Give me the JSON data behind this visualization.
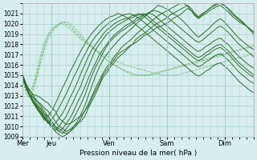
{
  "background_color": "#d8eeee",
  "grid_color": "#aacccc",
  "line_color_dark": "#2d6e2d",
  "line_color_dashed": "#5aaa5a",
  "xlabel": "Pression niveau de la mer( hPa )",
  "ylabel": "",
  "ylim": [
    1009,
    1022
  ],
  "yticks": [
    1009,
    1010,
    1011,
    1012,
    1013,
    1014,
    1015,
    1016,
    1017,
    1018,
    1019,
    1020,
    1021
  ],
  "day_labels": [
    "Mer",
    "Jeu",
    "Ven",
    "Sam",
    "Dim"
  ],
  "day_positions": [
    0,
    24,
    72,
    120,
    168
  ],
  "xlim": [
    0,
    192
  ],
  "series": [
    [
      1015.0,
      1014.2,
      1013.5,
      1013.1,
      1013.0,
      1012.8,
      1012.5,
      1012.3,
      1011.8,
      1011.5,
      1010.8,
      1010.5,
      1010.2,
      1010.3,
      1010.5,
      1010.8,
      1011.0,
      1011.5,
      1012.0,
      1012.8,
      1013.5,
      1014.2,
      1015.0,
      1015.5,
      1016.0,
      1016.5,
      1017.0,
      1017.3,
      1017.5,
      1017.8,
      1018.0,
      1018.2,
      1018.5,
      1018.8,
      1019.0,
      1019.2,
      1019.5,
      1019.7,
      1019.8,
      1020.0,
      1020.2,
      1020.5,
      1020.7,
      1020.9,
      1021.2,
      1021.5,
      1021.3,
      1020.8,
      1020.5,
      1020.8,
      1021.0,
      1021.3,
      1021.5,
      1021.7,
      1021.8,
      1021.5,
      1021.2,
      1020.8,
      1020.5,
      1020.2,
      1020.0,
      1019.8,
      1019.5,
      1019.2
    ],
    [
      1015.0,
      1014.0,
      1013.2,
      1012.8,
      1012.5,
      1012.2,
      1011.8,
      1011.5,
      1011.0,
      1010.5,
      1010.0,
      1009.8,
      1009.5,
      1009.7,
      1010.0,
      1010.3,
      1010.5,
      1011.0,
      1011.8,
      1012.5,
      1013.2,
      1014.0,
      1014.8,
      1015.2,
      1015.8,
      1016.2,
      1016.7,
      1017.0,
      1017.3,
      1017.7,
      1018.0,
      1018.5,
      1018.8,
      1019.0,
      1019.3,
      1019.6,
      1019.9,
      1020.1,
      1020.3,
      1020.5,
      1020.8,
      1021.0,
      1021.2,
      1021.4,
      1021.6,
      1021.8,
      1021.5,
      1021.0,
      1020.7,
      1021.0,
      1021.2,
      1021.5,
      1021.8,
      1022.0,
      1022.0,
      1021.8,
      1021.5,
      1021.0,
      1020.7,
      1020.4,
      1020.1,
      1019.8,
      1019.5,
      1019.2
    ],
    [
      1015.0,
      1014.0,
      1013.0,
      1012.5,
      1012.0,
      1011.8,
      1011.2,
      1011.0,
      1010.5,
      1010.0,
      1009.8,
      1009.5,
      1009.3,
      1009.5,
      1009.8,
      1010.2,
      1010.8,
      1011.5,
      1012.2,
      1013.0,
      1013.8,
      1014.5,
      1015.2,
      1015.8,
      1016.2,
      1016.8,
      1017.2,
      1017.7,
      1018.0,
      1018.3,
      1018.6,
      1019.0,
      1019.3,
      1019.6,
      1019.9,
      1020.2,
      1020.5,
      1020.8,
      1021.0,
      1021.2,
      1021.4,
      1021.6,
      1021.8,
      1022.0,
      1022.0,
      1021.7,
      1021.3,
      1020.9,
      1020.6,
      1020.9,
      1021.2,
      1021.5,
      1021.7,
      1021.9,
      1022.0,
      1021.8,
      1021.5,
      1021.2,
      1020.8,
      1020.5,
      1020.2,
      1019.8,
      1019.4,
      1019.0
    ],
    [
      1015.0,
      1013.8,
      1013.0,
      1012.3,
      1011.8,
      1011.3,
      1010.8,
      1010.5,
      1010.0,
      1009.5,
      1009.2,
      1009.0,
      1009.2,
      1009.5,
      1010.0,
      1010.5,
      1011.2,
      1012.0,
      1013.0,
      1014.0,
      1015.0,
      1015.8,
      1016.5,
      1017.0,
      1017.5,
      1017.9,
      1018.3,
      1018.7,
      1019.0,
      1019.3,
      1019.6,
      1020.0,
      1020.3,
      1020.6,
      1020.9,
      1021.2,
      1021.5,
      1021.8,
      1021.7,
      1021.5,
      1021.3,
      1021.0,
      1020.8,
      1020.5,
      1020.2,
      1019.8,
      1019.4,
      1019.0,
      1018.7,
      1019.0,
      1019.3,
      1019.6,
      1020.0,
      1020.3,
      1020.5,
      1020.2,
      1019.8,
      1019.4,
      1019.0,
      1018.6,
      1018.3,
      1018.0,
      1017.7,
      1017.5
    ],
    [
      1015.2,
      1014.2,
      1013.5,
      1013.0,
      1012.5,
      1012.0,
      1011.5,
      1011.0,
      1010.5,
      1010.0,
      1009.5,
      1009.3,
      1009.8,
      1010.2,
      1010.8,
      1011.5,
      1012.2,
      1013.0,
      1014.0,
      1015.0,
      1015.8,
      1016.5,
      1017.2,
      1017.8,
      1018.3,
      1018.7,
      1019.0,
      1019.3,
      1019.5,
      1019.8,
      1020.0,
      1020.3,
      1020.5,
      1020.8,
      1021.0,
      1021.2,
      1021.3,
      1021.2,
      1021.0,
      1020.8,
      1020.5,
      1020.2,
      1019.9,
      1019.6,
      1019.3,
      1019.0,
      1018.7,
      1018.4,
      1018.2,
      1018.4,
      1018.7,
      1019.0,
      1019.3,
      1019.6,
      1019.8,
      1019.5,
      1019.2,
      1018.8,
      1018.4,
      1018.0,
      1017.7,
      1017.4,
      1017.1,
      1016.8
    ],
    [
      1015.0,
      1014.0,
      1013.2,
      1012.8,
      1012.2,
      1011.7,
      1011.2,
      1010.7,
      1010.2,
      1009.8,
      1009.5,
      1009.8,
      1010.3,
      1010.8,
      1011.5,
      1012.3,
      1013.0,
      1013.8,
      1014.7,
      1015.5,
      1016.2,
      1017.0,
      1017.5,
      1018.0,
      1018.5,
      1018.9,
      1019.2,
      1019.5,
      1019.8,
      1020.0,
      1020.2,
      1020.5,
      1020.7,
      1020.9,
      1021.0,
      1021.0,
      1020.8,
      1020.5,
      1020.2,
      1019.9,
      1019.6,
      1019.3,
      1019.0,
      1018.7,
      1018.4,
      1018.1,
      1017.8,
      1017.5,
      1017.3,
      1017.5,
      1017.8,
      1018.0,
      1018.3,
      1018.5,
      1018.6,
      1018.3,
      1018.0,
      1017.6,
      1017.2,
      1016.8,
      1016.5,
      1016.2,
      1015.9,
      1015.7
    ],
    [
      1015.0,
      1013.8,
      1013.0,
      1012.4,
      1011.9,
      1011.4,
      1010.9,
      1010.4,
      1009.9,
      1009.6,
      1010.0,
      1010.5,
      1011.0,
      1011.8,
      1012.5,
      1013.3,
      1014.0,
      1015.0,
      1015.8,
      1016.7,
      1017.5,
      1018.0,
      1018.5,
      1019.0,
      1019.3,
      1019.6,
      1019.9,
      1020.1,
      1020.3,
      1020.5,
      1020.6,
      1020.8,
      1020.9,
      1021.0,
      1020.8,
      1020.5,
      1020.2,
      1019.9,
      1019.6,
      1019.3,
      1019.0,
      1018.7,
      1018.4,
      1018.1,
      1017.8,
      1017.5,
      1017.2,
      1016.9,
      1016.7,
      1016.9,
      1017.2,
      1017.4,
      1017.7,
      1017.9,
      1018.0,
      1017.7,
      1017.4,
      1017.0,
      1016.6,
      1016.2,
      1015.9,
      1015.6,
      1015.3,
      1015.0
    ],
    [
      1015.0,
      1014.0,
      1013.2,
      1012.5,
      1012.0,
      1011.5,
      1011.0,
      1010.5,
      1010.0,
      1010.3,
      1010.8,
      1011.3,
      1012.0,
      1012.8,
      1013.5,
      1014.3,
      1015.2,
      1016.0,
      1016.8,
      1017.5,
      1018.0,
      1018.5,
      1019.0,
      1019.4,
      1019.7,
      1020.0,
      1020.2,
      1020.4,
      1020.5,
      1020.6,
      1020.8,
      1020.9,
      1021.0,
      1020.8,
      1020.5,
      1020.2,
      1019.9,
      1019.6,
      1019.3,
      1019.0,
      1018.7,
      1018.4,
      1018.1,
      1017.8,
      1017.5,
      1017.2,
      1016.9,
      1016.6,
      1016.4,
      1016.6,
      1016.9,
      1017.1,
      1017.4,
      1017.6,
      1017.7,
      1017.4,
      1017.1,
      1016.7,
      1016.3,
      1015.9,
      1015.6,
      1015.3,
      1015.0,
      1014.8
    ],
    [
      1015.0,
      1013.9,
      1013.0,
      1012.4,
      1011.8,
      1011.3,
      1010.8,
      1010.3,
      1010.7,
      1011.2,
      1011.8,
      1012.5,
      1013.2,
      1014.0,
      1014.8,
      1015.5,
      1016.3,
      1017.0,
      1017.7,
      1018.3,
      1018.8,
      1019.2,
      1019.6,
      1019.9,
      1020.2,
      1020.4,
      1020.6,
      1020.8,
      1020.9,
      1021.0,
      1020.9,
      1020.7,
      1020.5,
      1020.2,
      1019.9,
      1019.6,
      1019.3,
      1019.0,
      1018.7,
      1018.4,
      1018.1,
      1017.8,
      1017.5,
      1017.2,
      1016.9,
      1016.6,
      1016.3,
      1016.0,
      1015.8,
      1016.0,
      1016.3,
      1016.5,
      1016.8,
      1017.0,
      1017.1,
      1016.8,
      1016.5,
      1016.1,
      1015.7,
      1015.3,
      1015.0,
      1014.7,
      1014.4,
      1014.2
    ],
    [
      1015.0,
      1013.8,
      1013.0,
      1012.3,
      1011.7,
      1011.2,
      1010.6,
      1011.0,
      1011.5,
      1012.2,
      1013.0,
      1013.8,
      1014.5,
      1015.3,
      1016.0,
      1016.7,
      1017.4,
      1018.0,
      1018.6,
      1019.1,
      1019.5,
      1019.9,
      1020.2,
      1020.5,
      1020.7,
      1020.8,
      1021.0,
      1020.9,
      1020.7,
      1020.5,
      1020.2,
      1019.9,
      1019.6,
      1019.3,
      1019.0,
      1018.7,
      1018.4,
      1018.1,
      1017.8,
      1017.5,
      1017.2,
      1016.9,
      1016.6,
      1016.3,
      1016.0,
      1015.7,
      1015.4,
      1015.1,
      1014.9,
      1015.1,
      1015.4,
      1015.6,
      1015.9,
      1016.1,
      1016.2,
      1015.9,
      1015.6,
      1015.2,
      1014.8,
      1014.4,
      1014.1,
      1013.8,
      1013.5,
      1013.3
    ]
  ],
  "dashed_series": [
    [
      1015.0,
      1013.8,
      1013.5,
      1014.0,
      1015.5,
      1017.0,
      1018.2,
      1019.0,
      1019.5,
      1019.8,
      1020.0,
      1020.0,
      1019.8,
      1019.5,
      1019.2,
      1018.8,
      1018.5,
      1018.2,
      1018.0,
      1017.8,
      1017.5,
      1017.3,
      1017.1,
      1016.9,
      1016.7,
      1016.5,
      1016.3,
      1016.2,
      1016.0,
      1015.9,
      1015.8,
      1015.7,
      1015.6,
      1015.5,
      1015.4,
      1015.3,
      1015.2,
      1015.1,
      1015.0,
      1015.0,
      1015.0,
      1015.0,
      1015.0,
      1015.1,
      1015.2,
      1015.3,
      1015.4,
      1015.5,
      1015.6,
      1015.7,
      1015.8,
      1015.9,
      1016.0,
      1016.1,
      1016.2,
      1016.3,
      1016.4,
      1016.5,
      1016.6,
      1016.7,
      1016.8,
      1016.9,
      1017.0,
      1017.1
    ],
    [
      1015.0,
      1013.5,
      1013.0,
      1013.8,
      1015.0,
      1016.5,
      1017.8,
      1018.8,
      1019.3,
      1019.7,
      1020.0,
      1020.2,
      1020.0,
      1019.8,
      1019.4,
      1019.0,
      1018.7,
      1018.3,
      1018.0,
      1017.7,
      1017.4,
      1017.1,
      1016.8,
      1016.5,
      1016.2,
      1016.0,
      1015.8,
      1015.6,
      1015.4,
      1015.3,
      1015.2,
      1015.0,
      1015.0,
      1015.0,
      1015.0,
      1015.0,
      1015.1,
      1015.2,
      1015.3,
      1015.4,
      1015.5,
      1015.6,
      1015.7,
      1015.8,
      1015.9,
      1016.0,
      1016.1,
      1016.2,
      1016.3,
      1016.4,
      1016.5,
      1016.6,
      1016.7,
      1016.8,
      1016.9,
      1017.0,
      1017.1,
      1017.2,
      1017.3,
      1017.4,
      1017.5,
      1017.6,
      1017.7,
      1017.8
    ],
    [
      1015.0,
      1013.2,
      1012.8,
      1013.5,
      1014.8,
      1016.2,
      1017.5,
      1018.5,
      1019.2,
      1019.6,
      1019.9,
      1020.2,
      1020.2,
      1020.0,
      1019.7,
      1019.3,
      1018.9,
      1018.5,
      1018.1,
      1017.8,
      1017.4,
      1017.1,
      1016.8,
      1016.5,
      1016.2,
      1016.0,
      1015.8,
      1015.6,
      1015.4,
      1015.2,
      1015.0,
      1015.0,
      1015.0,
      1015.0,
      1015.0,
      1015.1,
      1015.2,
      1015.3,
      1015.4,
      1015.5,
      1015.6,
      1015.7,
      1015.8,
      1015.9,
      1016.0,
      1016.1,
      1016.2,
      1016.3,
      1016.4,
      1016.5,
      1016.6,
      1016.7,
      1016.8,
      1016.9,
      1017.0,
      1017.1,
      1017.2,
      1017.3,
      1017.4,
      1017.5,
      1017.6,
      1017.7,
      1017.8,
      1017.9
    ]
  ]
}
